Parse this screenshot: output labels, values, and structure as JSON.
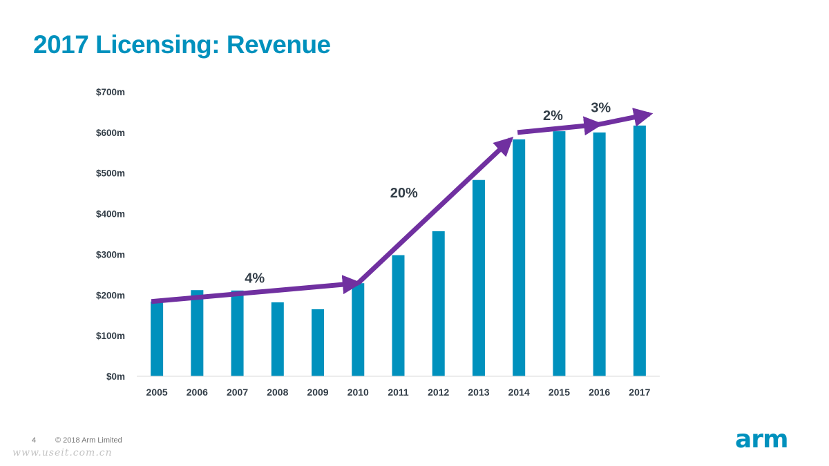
{
  "slide": {
    "title": "2017 Licensing: Revenue",
    "page_number": "4",
    "copyright": "© 2018 Arm Limited",
    "watermark": "www.useit.com.cn",
    "logo_text": "arm"
  },
  "colors": {
    "title": "#0091bd",
    "bar": "#0091bd",
    "arrow": "#7030a0",
    "text": "#333e48"
  },
  "chart_data": {
    "type": "bar",
    "title": "2017 Licensing: Revenue",
    "xlabel": "",
    "ylabel": "",
    "categories": [
      "2005",
      "2006",
      "2007",
      "2008",
      "2009",
      "2010",
      "2011",
      "2012",
      "2013",
      "2014",
      "2015",
      "2016",
      "2017"
    ],
    "values": [
      184,
      212,
      211,
      182,
      165,
      229,
      298,
      357,
      483,
      583,
      603,
      600,
      617
    ],
    "units": "$m",
    "ylim": [
      0,
      700
    ],
    "yticks": [
      0,
      100,
      200,
      300,
      400,
      500,
      600,
      700
    ],
    "ytick_labels": [
      "$0m",
      "$100m",
      "$200m",
      "$300m",
      "$400m",
      "$500m",
      "$600m",
      "$700m"
    ],
    "grid": false,
    "legend": "none",
    "annotations": [
      {
        "label": "4%",
        "type": "trend-arrow",
        "from": {
          "x": "2005",
          "y": 184
        },
        "to": {
          "x": "2010",
          "y": 229
        }
      },
      {
        "label": "20%",
        "type": "trend-arrow",
        "from": {
          "x": "2010",
          "y": 229
        },
        "to": {
          "x": "2014",
          "y": 583
        }
      },
      {
        "label": "2%",
        "type": "trend-arrow",
        "from": {
          "x": "2014",
          "y": 600
        },
        "to": {
          "x": "2016",
          "y": 620
        }
      },
      {
        "label": "3%",
        "type": "trend-arrow",
        "from": {
          "x": "2016",
          "y": 620
        },
        "to": {
          "x": "2017",
          "y": 645
        }
      }
    ]
  }
}
